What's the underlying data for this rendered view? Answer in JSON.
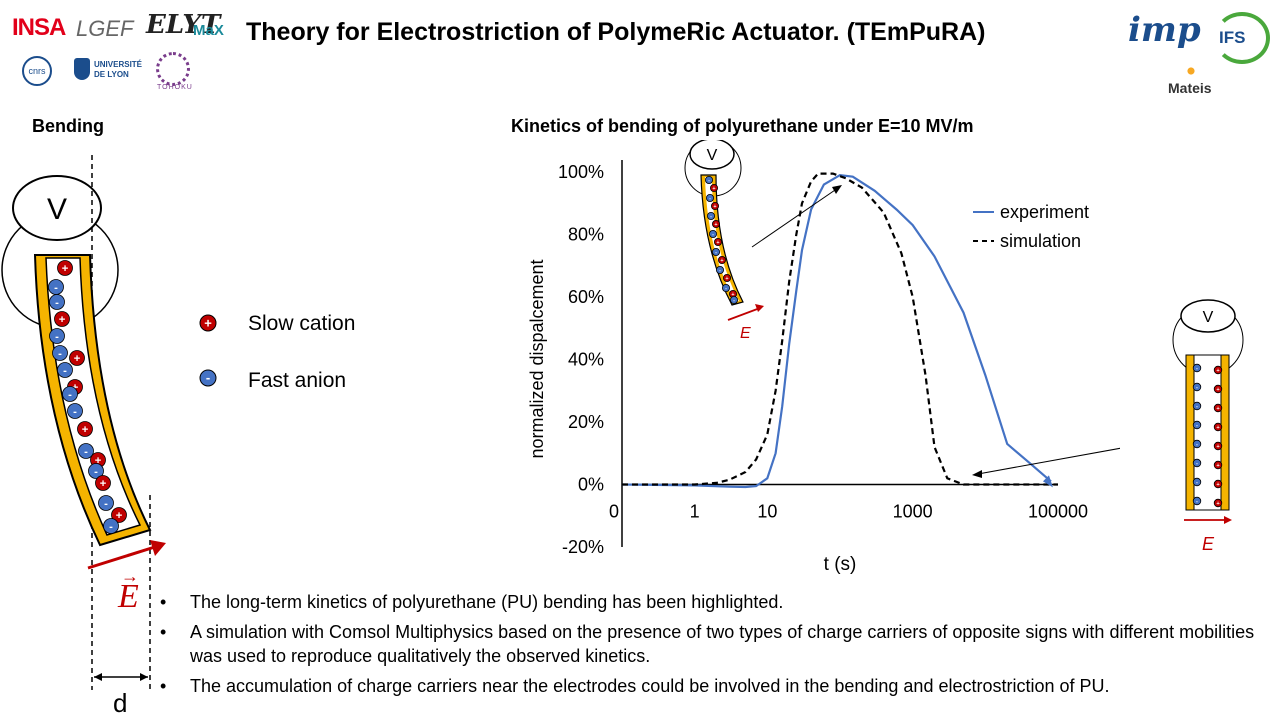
{
  "header": {
    "title": "Theory for Electrostriction of PolymeRic Actuator. (TEmPuRA)",
    "logos_left": {
      "insa": "INSA",
      "lgef": "LGEF",
      "elymax_main": "ELYT",
      "elymax_sub": "MaX",
      "cnrs": "cnrs",
      "udl_line1": "UNIVERSITÉ",
      "udl_line2": "DE LYON",
      "tohoku": "TOHOKU"
    },
    "logos_right": {
      "imp": "imp",
      "ifs": "IFS",
      "mateis": "Mateis"
    }
  },
  "left_panel": {
    "heading": "Bending",
    "voltage_label": "V",
    "field_label": "E",
    "distance_label": "d"
  },
  "legend": {
    "cation_label": "Slow cation",
    "anion_label": "Fast anion"
  },
  "chart_title": "Kinetics of bending of polyurethane under E=10 MV/m",
  "chart_data": {
    "type": "line",
    "xlabel": "t (s)",
    "ylabel": "normalized dispalcement",
    "x_scale": "log",
    "x_ticks": [
      "0",
      "1",
      "10",
      "1000",
      "100000"
    ],
    "y_ticks": [
      "100%",
      "80%",
      "60%",
      "40%",
      "20%",
      "0%",
      "-20%"
    ],
    "ylim": [
      -0.2,
      1.0
    ],
    "legend_position": "top-right",
    "series": [
      {
        "name": "experiment",
        "color": "#4472C4",
        "style": "solid",
        "points": [
          [
            0.1,
            0
          ],
          [
            1,
            -0.003
          ],
          [
            3,
            -0.007
          ],
          [
            5,
            -0.008
          ],
          [
            7,
            -0.005
          ],
          [
            10,
            0.02
          ],
          [
            13,
            0.1
          ],
          [
            16,
            0.25
          ],
          [
            20,
            0.45
          ],
          [
            25,
            0.62
          ],
          [
            30,
            0.75
          ],
          [
            40,
            0.88
          ],
          [
            60,
            0.96
          ],
          [
            100,
            0.99
          ],
          [
            150,
            0.985
          ],
          [
            300,
            0.94
          ],
          [
            600,
            0.88
          ],
          [
            1000,
            0.83
          ],
          [
            2000,
            0.73
          ],
          [
            5000,
            0.55
          ],
          [
            10000,
            0.35
          ],
          [
            20000,
            0.13
          ],
          [
            40000,
            0.07
          ],
          [
            80000,
            0.01
          ]
        ]
      },
      {
        "name": "simulation",
        "color": "#000000",
        "style": "dashed",
        "points": [
          [
            0.1,
            0
          ],
          [
            1,
            0.0
          ],
          [
            2,
            0.005
          ],
          [
            3,
            0.015
          ],
          [
            5,
            0.04
          ],
          [
            7,
            0.08
          ],
          [
            10,
            0.16
          ],
          [
            13,
            0.3
          ],
          [
            16,
            0.46
          ],
          [
            20,
            0.65
          ],
          [
            25,
            0.8
          ],
          [
            30,
            0.9
          ],
          [
            40,
            0.97
          ],
          [
            50,
            0.995
          ],
          [
            80,
            0.995
          ],
          [
            120,
            0.98
          ],
          [
            200,
            0.95
          ],
          [
            400,
            0.87
          ],
          [
            700,
            0.74
          ],
          [
            1000,
            0.6
          ],
          [
            1500,
            0.35
          ],
          [
            2000,
            0.12
          ],
          [
            3000,
            0.02
          ],
          [
            5000,
            0.0
          ],
          [
            100000,
            0.0
          ]
        ]
      }
    ]
  },
  "inset_labels": {
    "voltage": "V",
    "field": "E"
  },
  "bullets": [
    "The long-term kinetics of polyurethane (PU) bending has been highlighted.",
    "A simulation with Comsol Multiphysics based on the presence of two types of charge carriers of opposite signs with different mobilities was used to reproduce qualitatively the observed kinetics.",
    "The accumulation of charge carriers near the electrodes could be involved in the bending and electrostriction of PU."
  ]
}
